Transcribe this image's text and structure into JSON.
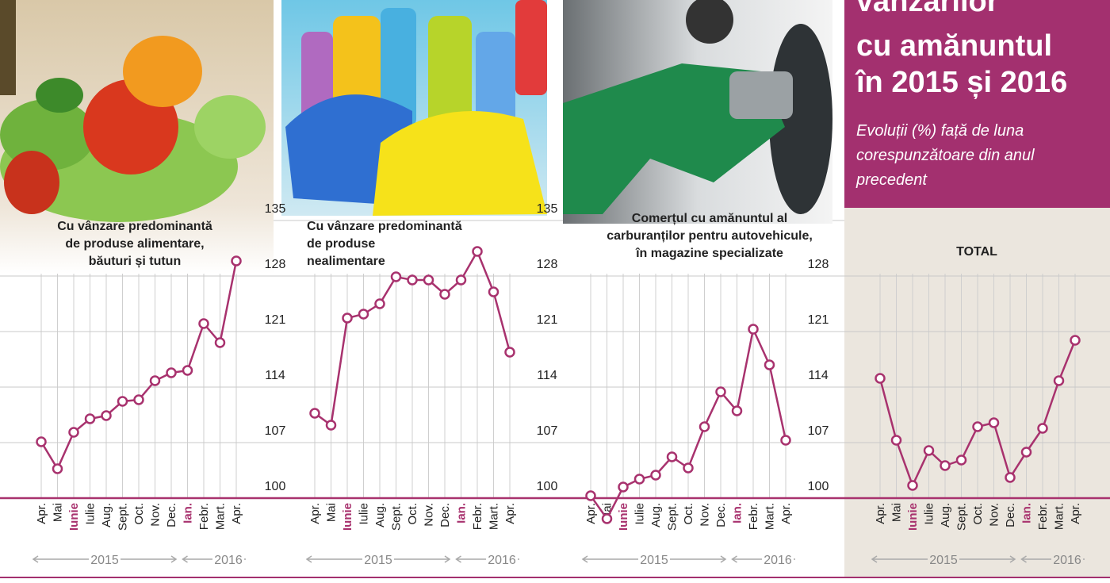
{
  "header": {
    "title": [
      "vânzărilor",
      "cu amănuntul",
      "în 2015 și 2016"
    ],
    "subtitle": [
      "Evoluții (%) față de luna",
      "corespunzătoare din anul",
      "precedent"
    ]
  },
  "chart_data": [
    {
      "type": "line",
      "title": [
        "Cu vânzare predominantă",
        "de produse alimentare,",
        "băuturi și tutun"
      ],
      "categories": [
        "Apr.",
        "Mai",
        "Iunie",
        "Iulie",
        "Aug.",
        "Sept.",
        "Oct.",
        "Nov.",
        "Dec.",
        "Ian.",
        "Febr.",
        "Mart.",
        "Apr."
      ],
      "values": [
        107.1,
        103.7,
        108.3,
        110.0,
        110.4,
        112.2,
        112.4,
        114.8,
        115.8,
        116.1,
        122.0,
        119.6,
        129.9
      ],
      "years": [
        "2015",
        "2016"
      ],
      "color": "#a8326e",
      "highlight": [
        2,
        9
      ],
      "highlight_color": "#a8326e",
      "ylim": [
        100,
        135
      ],
      "yticks": [
        100,
        107,
        114,
        121,
        128
      ],
      "grid": true
    },
    {
      "type": "line",
      "title": [
        "Cu vânzare predominantă",
        "de produse",
        "nealimentare"
      ],
      "categories": [
        "Apr.",
        "Mai",
        "Iunie",
        "Iulie",
        "Aug.",
        "Sept.",
        "Oct.",
        "Nov.",
        "Dec.",
        "Ian.",
        "Febr.",
        "Mart.",
        "Apr."
      ],
      "values": [
        110.7,
        109.2,
        122.7,
        123.2,
        124.5,
        127.9,
        127.5,
        127.5,
        125.7,
        127.5,
        131.1,
        126.0,
        118.4
      ],
      "years": [
        "2015",
        "2016"
      ],
      "color": "#a8326e",
      "highlight": [
        2,
        9
      ],
      "highlight_color": "#a8326e",
      "ylim": [
        100,
        135
      ],
      "yticks": [
        100,
        107,
        114,
        121,
        128,
        135
      ],
      "grid": true
    },
    {
      "type": "line",
      "title": [
        "Comerțul cu amănuntul al",
        "carburanților pentru autovehicule,",
        "în magazine specializate"
      ],
      "categories": [
        "Apr.",
        "Mai",
        "Iunie",
        "Iulie",
        "Aug.",
        "Sept.",
        "Oct.",
        "Nov.",
        "Dec.",
        "Ian.",
        "Febr.",
        "Mart.",
        "Apr."
      ],
      "values": [
        100.3,
        97.4,
        101.4,
        102.4,
        102.9,
        105.2,
        103.8,
        109.0,
        113.4,
        111.0,
        121.3,
        116.8,
        107.3
      ],
      "years": [
        "2015",
        "2016"
      ],
      "color": "#a8326e",
      "highlight": [
        2,
        9
      ],
      "highlight_color": "#a8326e",
      "ylim": [
        100,
        135
      ],
      "yticks": [
        100,
        107,
        114,
        121,
        128,
        135
      ],
      "grid": true
    },
    {
      "type": "line",
      "title": [
        "TOTAL"
      ],
      "categories": [
        "Apr.",
        "Mai",
        "Iunie",
        "Iulie",
        "Aug.",
        "Sept.",
        "Oct.",
        "Nov.",
        "Dec.",
        "Ian.",
        "Febr.",
        "Mart.",
        "Apr."
      ],
      "values": [
        115.1,
        107.3,
        101.6,
        106.0,
        104.1,
        104.8,
        109.0,
        109.5,
        102.6,
        105.8,
        108.8,
        114.8,
        119.9
      ],
      "years": [
        "2015",
        "2016"
      ],
      "color": "#a8326e",
      "highlight": [
        2,
        9
      ],
      "highlight_color": "#a8326e",
      "ylim": [
        100,
        135
      ],
      "yticks": [
        100,
        107,
        114,
        121,
        128
      ],
      "grid": true
    }
  ]
}
